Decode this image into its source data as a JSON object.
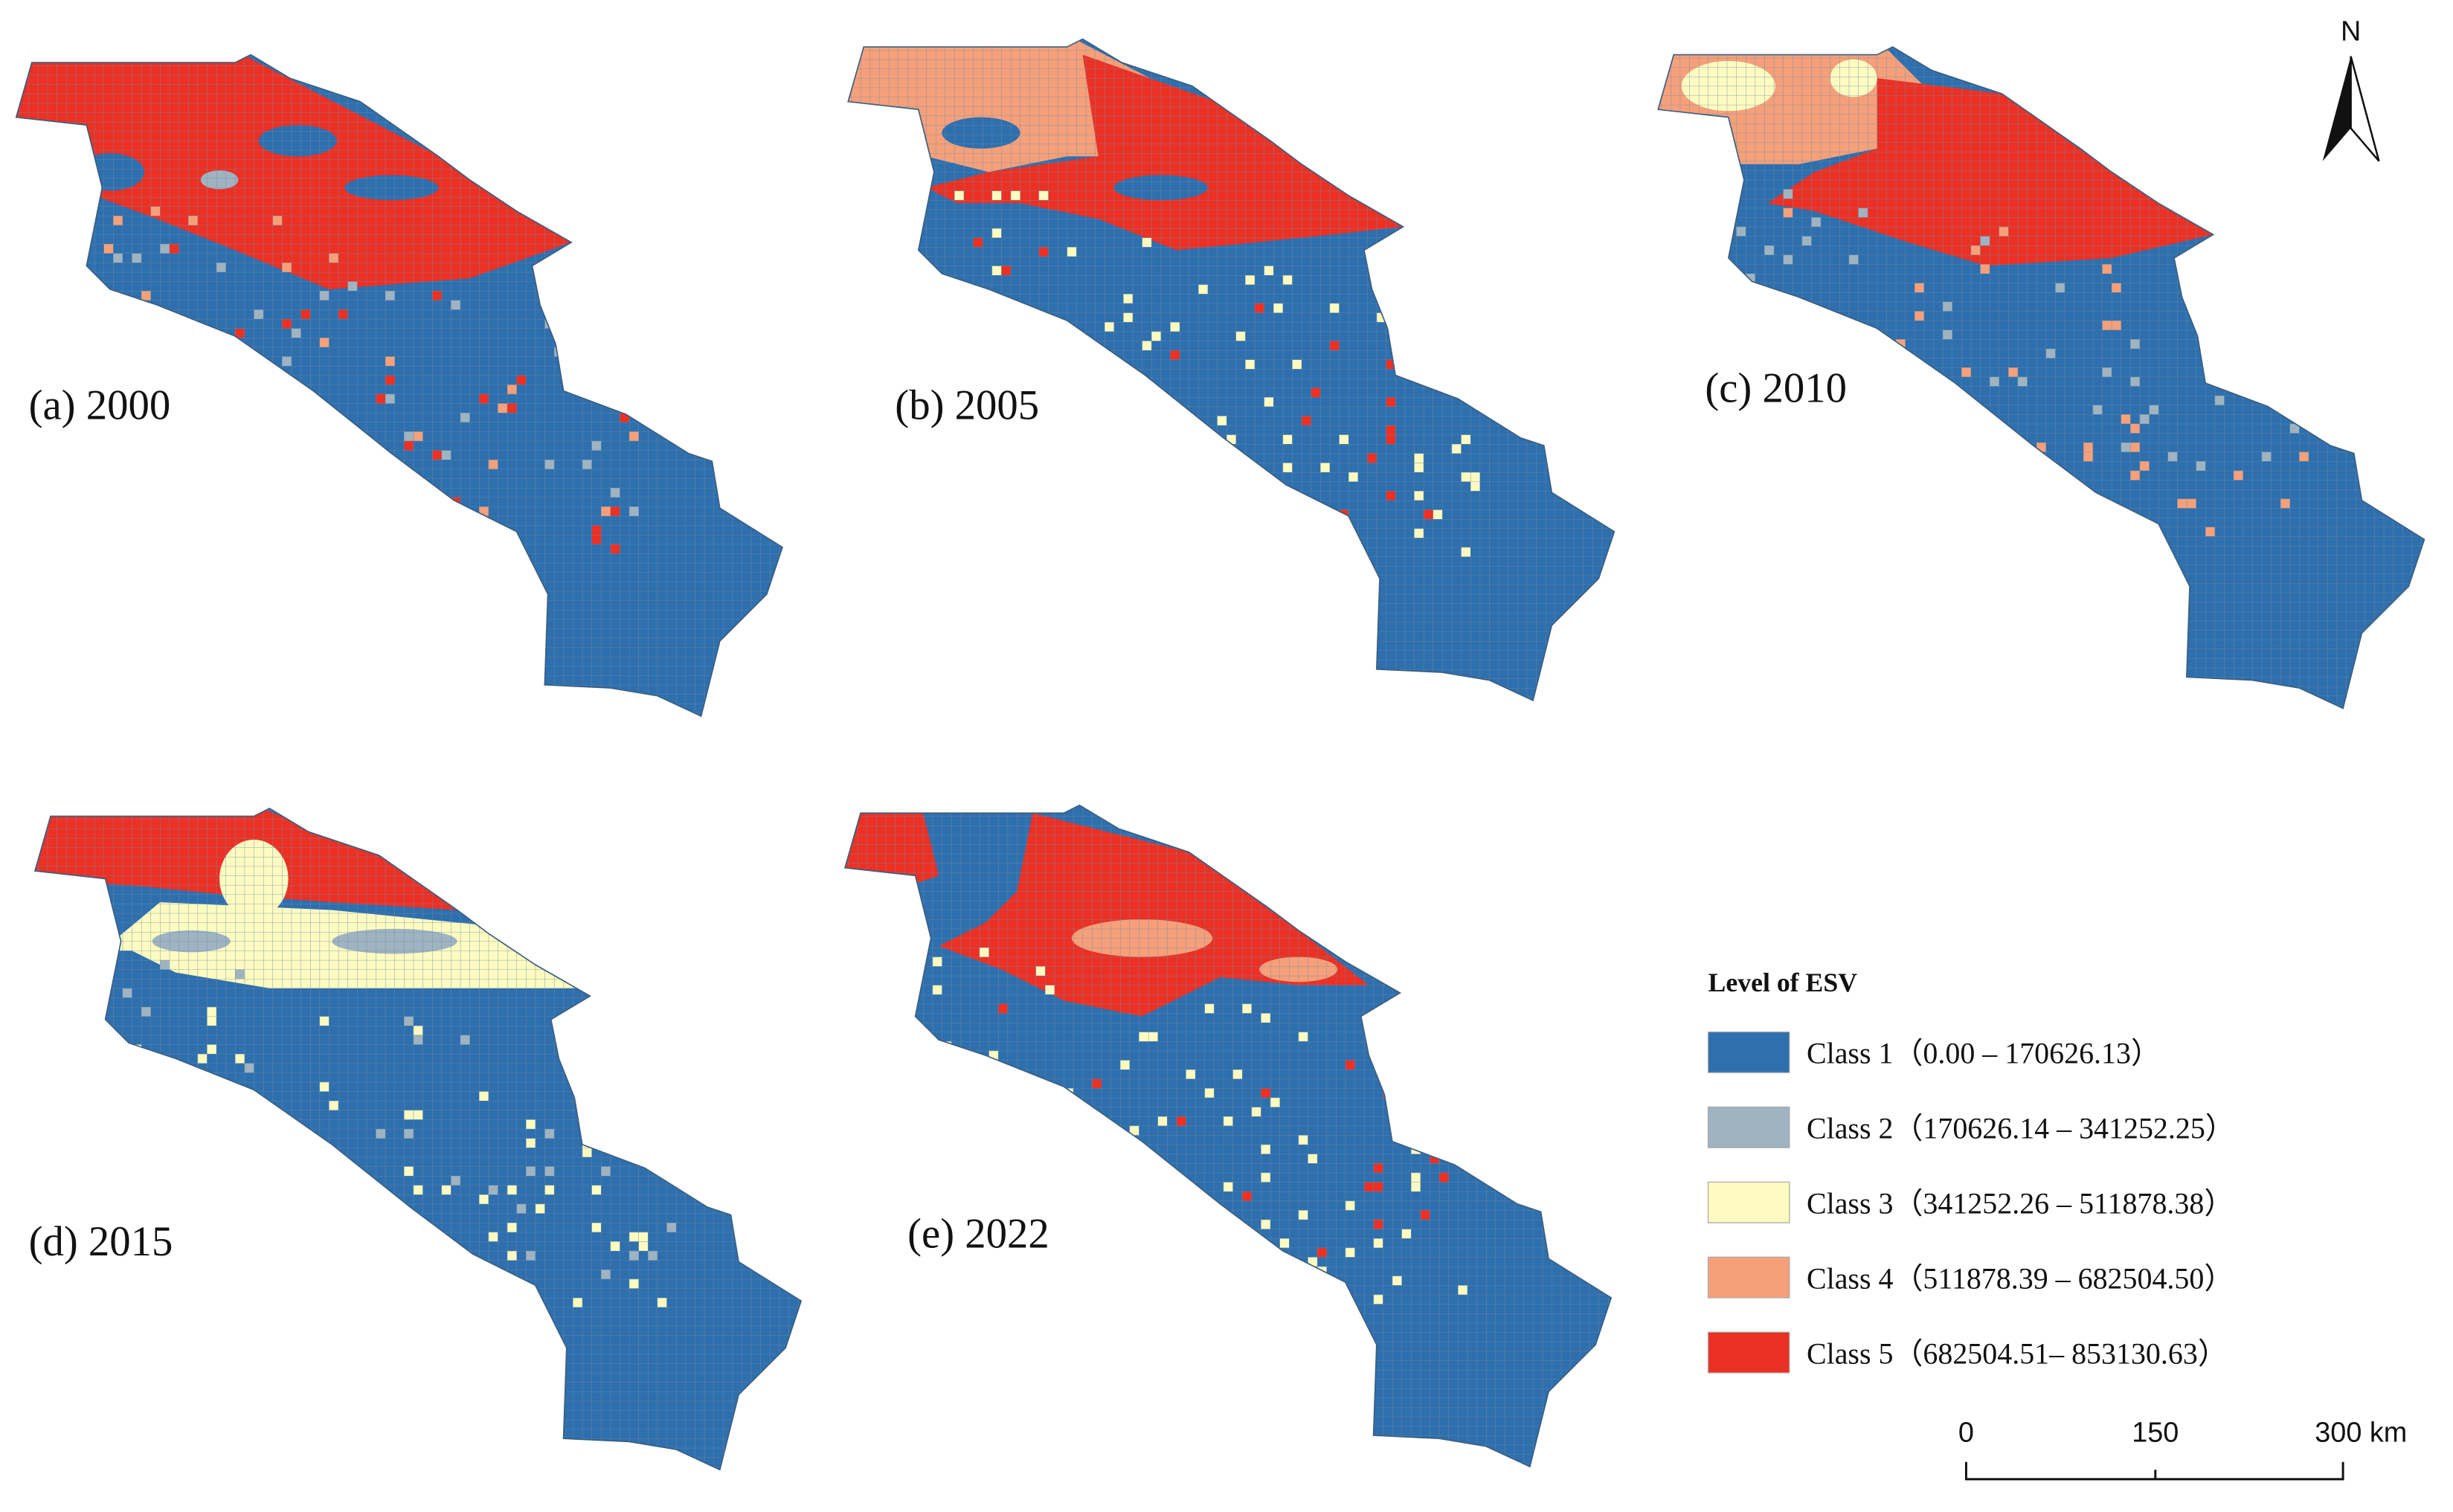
{
  "maps": [
    {
      "label": "(a) 2000"
    },
    {
      "label": "(b) 2005"
    },
    {
      "label": "(c) 2010"
    },
    {
      "label": "(d) 2015"
    },
    {
      "label": "(e) 2022"
    }
  ],
  "legend": {
    "title": "Level of ESV",
    "items": [
      {
        "label": "Class 1（0.00 – 170626.13）",
        "color": "#2e6fae"
      },
      {
        "label": "Class 2（170626.14 – 341252.25）",
        "color": "#9fb3c1"
      },
      {
        "label": "Class 3（341252.26 – 511878.38）",
        "color": "#fdfbc0"
      },
      {
        "label": "Class 4（511878.39 – 682504.50）",
        "color": "#f6a07a"
      },
      {
        "label": "Class 5（682504.51– 853130.63）",
        "color": "#ec3024"
      }
    ]
  },
  "scale_bar": {
    "labels": [
      "0",
      "150",
      "300 km"
    ]
  },
  "north_arrow": "N"
}
